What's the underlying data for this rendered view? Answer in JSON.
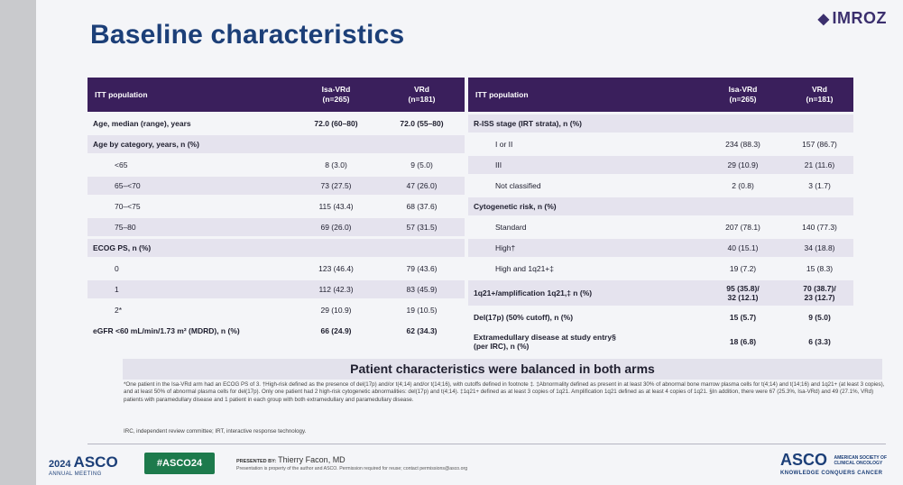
{
  "brand": {
    "logo_text": "IMROZ"
  },
  "title": "Baseline characteristics",
  "left_table": {
    "headers": [
      "ITT population",
      "Isa-VRd\n(n=265)",
      "VRd\n(n=181)"
    ],
    "rows": [
      {
        "label": "Age, median (range), years",
        "a": "72.0 (60–80)",
        "b": "72.0 (55–80)"
      },
      {
        "label": "Age by category, years, n (%)",
        "a": "",
        "b": ""
      },
      {
        "label": "<65",
        "a": "8 (3.0)",
        "b": "9 (5.0)"
      },
      {
        "label": "65–<70",
        "a": "73 (27.5)",
        "b": "47 (26.0)"
      },
      {
        "label": "70–<75",
        "a": "115 (43.4)",
        "b": "68 (37.6)"
      },
      {
        "label": "75–80",
        "a": "69 (26.0)",
        "b": "57 (31.5)"
      },
      {
        "label": "ECOG PS, n (%)",
        "a": "",
        "b": ""
      },
      {
        "label": "0",
        "a": "123 (46.4)",
        "b": "79 (43.6)"
      },
      {
        "label": "1",
        "a": "112 (42.3)",
        "b": "83 (45.9)"
      },
      {
        "label": "2*",
        "a": "29 (10.9)",
        "b": "19 (10.5)"
      },
      {
        "label": "eGFR <60 mL/min/1.73 m² (MDRD), n (%)",
        "a": "66 (24.9)",
        "b": "62 (34.3)"
      }
    ]
  },
  "right_table": {
    "headers": [
      "ITT population",
      "Isa-VRd\n(n=265)",
      "VRd\n(n=181)"
    ],
    "rows": [
      {
        "label": "R-ISS stage (IRT strata), n (%)",
        "a": "",
        "b": ""
      },
      {
        "label": "I or II",
        "a": "234 (88.3)",
        "b": "157 (86.7)"
      },
      {
        "label": "III",
        "a": "29 (10.9)",
        "b": "21 (11.6)"
      },
      {
        "label": "Not classified",
        "a": "2 (0.8)",
        "b": "3 (1.7)"
      },
      {
        "label": "Cytogenetic risk, n (%)",
        "a": "",
        "b": ""
      },
      {
        "label": "Standard",
        "a": "207 (78.1)",
        "b": "140 (77.3)"
      },
      {
        "label": "High†",
        "a": "40 (15.1)",
        "b": "34 (18.8)"
      },
      {
        "label": "High and 1q21+‡",
        "a": "19 (7.2)",
        "b": "15 (8.3)"
      },
      {
        "label": "1q21+/amplification 1q21,‡ n (%)",
        "a": "95 (35.8)/\n32 (12.1)",
        "b": "70 (38.7)/\n23 (12.7)"
      },
      {
        "label": "Del(17p) (50% cutoff), n (%)",
        "a": "15 (5.7)",
        "b": "9 (5.0)"
      },
      {
        "label": "Extramedullary disease at study entry§\n(per IRC), n (%)",
        "a": "18 (6.8)",
        "b": "6 (3.3)"
      }
    ]
  },
  "summary": "Patient characteristics were balanced in both arms",
  "footnote": "*One patient in the Isa-VRd arm had an ECOG PS of 3. †High-risk defined as the presence of del(17p) and/or t(4;14) and/or t(14;16), with cutoffs defined in footnote ‡. ‡Abnormality defined as present in at least 30% of abnormal bone marrow plasma cells for t(4;14) and t(14;16) and 1q21+ (at least 3 copies), and at least 50% of abnormal plasma cells for del(17p). Only one patient had 2 high-risk cytogenetic abnormalities: del(17p) and t(4;14). ‡1q21+ defined as at least 3 copies of 1q21. Amplification 1q21 defined as at least 4 copies of 1q21. §In addition, there were 67 (25.3%, Isa-VRd) and 49 (27.1%, VRd) patients with paramedullary disease and 1 patient in each group with both extramedullary and paramedullary disease.",
  "abbreviations": "IRC, independent review committee; IRT, interactive response technology.",
  "footer": {
    "meeting_year": "2024",
    "meeting_name": "ASCO",
    "meeting_sub": "ANNUAL MEETING",
    "hashtag": "#ASCO24",
    "presenter_label": "PRESENTED BY:",
    "presenter_name": "Thierry Facon, MD",
    "presenter_note": "Presentation is property of the author and ASCO. Permission required for reuse; contact permissions@asco.org",
    "society_name": "ASCO",
    "society_small": "AMERICAN SOCIETY OF\nCLINICAL ONCOLOGY",
    "society_tag": "KNOWLEDGE CONQUERS CANCER"
  }
}
